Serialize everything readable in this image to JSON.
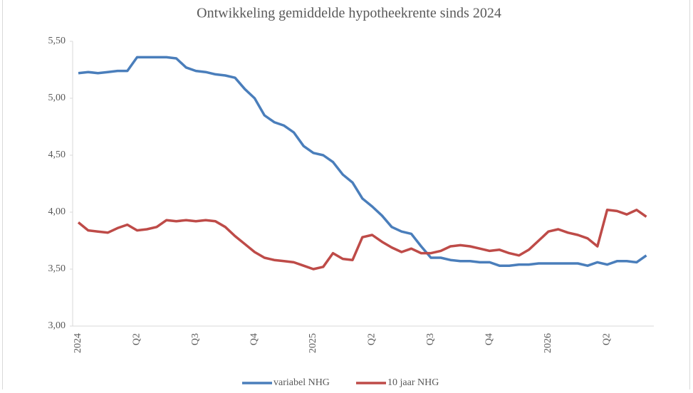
{
  "chart_data": {
    "type": "line",
    "title": "Ontwikkeling gemiddelde hypotheekrente sinds 2024",
    "categories": [
      "2024",
      null,
      null,
      null,
      null,
      null,
      "Q2",
      null,
      null,
      null,
      null,
      null,
      "Q3",
      null,
      null,
      null,
      null,
      null,
      "Q4",
      null,
      null,
      null,
      null,
      null,
      "2025",
      null,
      null,
      null,
      null,
      null,
      "Q2",
      null,
      null,
      null,
      null,
      null,
      "Q3",
      null,
      null,
      null,
      null,
      null,
      "Q4",
      null,
      null,
      null,
      null,
      null,
      "2026",
      null,
      null,
      null,
      null,
      null,
      "Q2",
      null,
      null,
      null,
      null
    ],
    "series": [
      {
        "name": "variabel NHG",
        "color": "#4a7ebb",
        "values": [
          5.22,
          5.23,
          5.22,
          5.23,
          5.24,
          5.24,
          5.36,
          5.36,
          5.36,
          5.36,
          5.35,
          5.27,
          5.24,
          5.23,
          5.21,
          5.2,
          5.18,
          5.08,
          5.0,
          4.85,
          4.79,
          4.76,
          4.7,
          4.58,
          4.52,
          4.5,
          4.44,
          4.33,
          4.26,
          4.12,
          4.05,
          3.97,
          3.87,
          3.83,
          3.81,
          3.7,
          3.6,
          3.6,
          3.58,
          3.57,
          3.57,
          3.56,
          3.56,
          3.53,
          3.53,
          3.54,
          3.54,
          3.55,
          3.55,
          3.55,
          3.55,
          3.55,
          3.53,
          3.56,
          3.54,
          3.57,
          3.57,
          3.56,
          3.62
        ]
      },
      {
        "name": "10 jaar NHG",
        "color": "#be4b48",
        "values": [
          3.91,
          3.84,
          3.83,
          3.82,
          3.86,
          3.89,
          3.84,
          3.85,
          3.87,
          3.93,
          3.92,
          3.93,
          3.92,
          3.93,
          3.92,
          3.87,
          3.79,
          3.72,
          3.65,
          3.6,
          3.58,
          3.57,
          3.56,
          3.53,
          3.5,
          3.52,
          3.64,
          3.59,
          3.58,
          3.78,
          3.8,
          3.74,
          3.69,
          3.65,
          3.68,
          3.64,
          3.64,
          3.66,
          3.7,
          3.71,
          3.7,
          3.68,
          3.66,
          3.67,
          3.64,
          3.62,
          3.67,
          3.75,
          3.83,
          3.85,
          3.82,
          3.8,
          3.77,
          3.7,
          4.02,
          4.01,
          3.98,
          4.02,
          3.96
        ]
      }
    ],
    "ylim": [
      3.0,
      5.5
    ],
    "yticks": [
      {
        "value": 3.0,
        "label": "3,00"
      },
      {
        "value": 3.5,
        "label": "3,50"
      },
      {
        "value": 4.0,
        "label": "4,00"
      },
      {
        "value": 4.5,
        "label": "4,50"
      },
      {
        "value": 5.0,
        "label": "5,00"
      },
      {
        "value": 5.5,
        "label": "5,50"
      }
    ],
    "grid": false,
    "legend": "bottom"
  }
}
